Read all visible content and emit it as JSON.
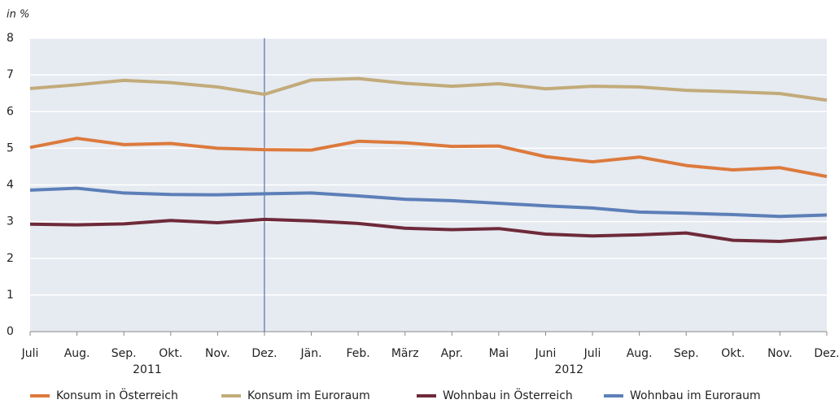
{
  "chart_data": {
    "type": "line",
    "y_label": "in %",
    "categories": [
      "Juli",
      "Aug.",
      "Sep.",
      "Okt.",
      "Nov.",
      "Dez.",
      "Jän.",
      "Feb.",
      "März",
      "Apr.",
      "Mai",
      "Juni",
      "Juli",
      "Aug.",
      "Sep.",
      "Okt.",
      "Nov.",
      "Dez."
    ],
    "year_labels": [
      "2011",
      "2012"
    ],
    "series": [
      {
        "name": "Konsum in Österreich",
        "color": "#dc7a3c",
        "values": [
          5.02,
          5.27,
          5.1,
          5.13,
          5.0,
          4.96,
          4.95,
          5.19,
          5.15,
          5.05,
          5.06,
          4.77,
          4.63,
          4.76,
          4.53,
          4.41,
          4.47,
          4.23
        ]
      },
      {
        "name": "Konsum im Euroraum",
        "color": "#c2ab7a",
        "values": [
          6.63,
          6.73,
          6.85,
          6.79,
          6.67,
          6.47,
          6.86,
          6.9,
          6.77,
          6.69,
          6.76,
          6.62,
          6.69,
          6.67,
          6.58,
          6.54,
          6.49,
          6.31
        ]
      },
      {
        "name": "Wohnbau in Österreich",
        "color": "#6e2a3a",
        "values": [
          2.93,
          2.91,
          2.94,
          3.03,
          2.97,
          3.06,
          3.02,
          2.95,
          2.82,
          2.78,
          2.81,
          2.66,
          2.61,
          2.64,
          2.69,
          2.49,
          2.46,
          2.56
        ]
      },
      {
        "name": "Wohnbau im Euroraum",
        "color": "#5c7fb8",
        "values": [
          3.86,
          3.91,
          3.78,
          3.74,
          3.73,
          3.76,
          3.78,
          3.7,
          3.61,
          3.57,
          3.5,
          3.43,
          3.37,
          3.26,
          3.23,
          3.19,
          3.14,
          3.18
        ]
      }
    ],
    "ylim": [
      0,
      8
    ],
    "yticks": [
      0,
      1,
      2,
      3,
      4,
      5,
      6,
      7,
      8
    ],
    "grid": true,
    "vline_index": 5,
    "legend": "bottom"
  }
}
